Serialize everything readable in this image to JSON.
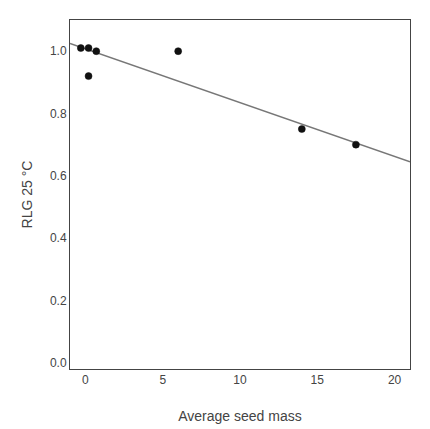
{
  "chart_data": {
    "type": "scatter",
    "xlabel": "Average seed mass",
    "ylabel": "RLG 25 °C",
    "series": [
      {
        "type": "line",
        "color": "#777777",
        "x": [
          -1.0,
          21.0
        ],
        "values": [
          1.025,
          0.645
        ]
      },
      {
        "type": "scatter",
        "color": "#111111",
        "x": [
          -0.3,
          0.2,
          0.7,
          0.2,
          6.0,
          14.0,
          17.5
        ],
        "values": [
          1.01,
          1.01,
          1.0,
          0.92,
          1.0,
          0.75,
          0.7
        ]
      }
    ],
    "xlim": [
      -1.0,
      21.0
    ],
    "ylim": [
      -0.02,
      1.1
    ],
    "xticks": [
      0,
      5,
      10,
      15,
      20
    ],
    "yticks": [
      {
        "value": 0.0,
        "label": "0.0"
      },
      0.2,
      0.4,
      0.6,
      0.8,
      {
        "value": 1.0,
        "label": "1.0"
      }
    ],
    "grid": false
  }
}
